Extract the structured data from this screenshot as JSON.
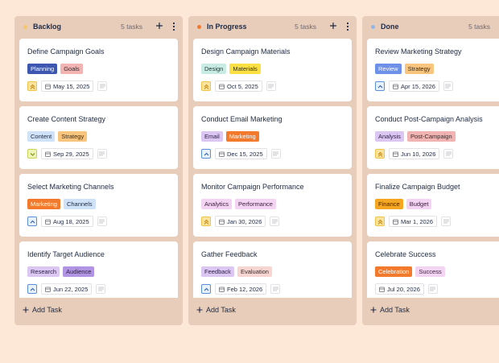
{
  "board": {
    "add_task_label": "Add Task",
    "columns": [
      {
        "name": "Backlog",
        "dot_color": "#f5c56a",
        "count": "5 tasks",
        "cards": [
          {
            "title": "Define Campaign Goals",
            "priority": "high",
            "date": "May 15, 2025",
            "tags": [
              {
                "label": "Planning",
                "color": "#3d57b0",
                "text_color": "#ffffff"
              },
              {
                "label": "Goals",
                "color": "#f2b3b3",
                "text_color": "#3a2a2a"
              }
            ]
          },
          {
            "title": "Create Content Strategy",
            "priority": "low",
            "date": "Sep 29, 2025",
            "tags": [
              {
                "label": "Content",
                "color": "#cfe2f8",
                "text_color": "#1f2a44"
              },
              {
                "label": "Strategy",
                "color": "#f8c57e",
                "text_color": "#3a2a1a"
              }
            ]
          },
          {
            "title": "Select Marketing Channels",
            "priority": "medium",
            "date": "Aug 18, 2025",
            "tags": [
              {
                "label": "Marketing",
                "color": "#f37a2c",
                "text_color": "#ffffff"
              },
              {
                "label": "Channels",
                "color": "#cfe2f8",
                "text_color": "#1f2a44"
              }
            ]
          },
          {
            "title": "Identify Target Audience",
            "priority": "medium",
            "date": "Jun 22, 2025",
            "tags": [
              {
                "label": "Research",
                "color": "#dcc6f2",
                "text_color": "#2a1f44"
              },
              {
                "label": "Audience",
                "color": "#b194e4",
                "text_color": "#2a1f44"
              }
            ]
          }
        ]
      },
      {
        "name": "In Progress",
        "dot_color": "#f37a2c",
        "count": "5 tasks",
        "cards": [
          {
            "title": "Design Campaign Materials",
            "priority": "high",
            "date": "Oct 5, 2025",
            "tags": [
              {
                "label": "Design",
                "color": "#c8ece3",
                "text_color": "#1f3a33"
              },
              {
                "label": "Materials",
                "color": "#fbe043",
                "text_color": "#3a3310"
              }
            ]
          },
          {
            "title": "Conduct Email Marketing",
            "priority": "medium",
            "date": "Dec 15, 2025",
            "tags": [
              {
                "label": "Email",
                "color": "#dcc6f2",
                "text_color": "#2a1f44"
              },
              {
                "label": "Marketing",
                "color": "#f37a2c",
                "text_color": "#ffffff"
              }
            ]
          },
          {
            "title": "Monitor Campaign Performance",
            "priority": "high",
            "date": "Jan 30, 2026",
            "tags": [
              {
                "label": "Analytics",
                "color": "#f4d4f3",
                "text_color": "#3a1f3a"
              },
              {
                "label": "Performance",
                "color": "#f4d4f3",
                "text_color": "#3a1f3a"
              }
            ]
          },
          {
            "title": "Gather Feedback",
            "priority": "medium",
            "date": "Feb 12, 2026",
            "tags": [
              {
                "label": "Feedback",
                "color": "#dcc6f2",
                "text_color": "#2a1f44"
              },
              {
                "label": "Evaluation",
                "color": "#f7d6d1",
                "text_color": "#3a2a2a"
              }
            ]
          }
        ]
      },
      {
        "name": "Done",
        "dot_color": "#8fb7ea",
        "count": "5 tasks",
        "cards": [
          {
            "title": "Review Marketing Strategy",
            "priority": "medium",
            "date": "Apr 15, 2026",
            "tags": [
              {
                "label": "Review",
                "color": "#6d90e8",
                "text_color": "#ffffff"
              },
              {
                "label": "Strategy",
                "color": "#f8c57e",
                "text_color": "#3a2a1a"
              }
            ]
          },
          {
            "title": "Conduct Post-Campaign Analysis",
            "priority": "high",
            "date": "Jun 10, 2026",
            "tags": [
              {
                "label": "Analysis",
                "color": "#dcc6f2",
                "text_color": "#2a1f44"
              },
              {
                "label": "Post-Campaign",
                "color": "#f2b3b3",
                "text_color": "#3a2a2a"
              }
            ]
          },
          {
            "title": "Finalize Campaign Budget",
            "priority": "high",
            "date": "Mar 1, 2026",
            "tags": [
              {
                "label": "Finance",
                "color": "#f5a623",
                "text_color": "#3a2a10"
              },
              {
                "label": "Budget",
                "color": "#f4d4f3",
                "text_color": "#3a1f3a"
              }
            ]
          },
          {
            "title": "Celebrate Success",
            "priority": "none",
            "date": "Jul 20, 2026",
            "tags": [
              {
                "label": "Celebration",
                "color": "#f37a2c",
                "text_color": "#ffffff"
              },
              {
                "label": "Success",
                "color": "#f4d4f3",
                "text_color": "#3a1f3a"
              }
            ]
          }
        ]
      }
    ]
  }
}
